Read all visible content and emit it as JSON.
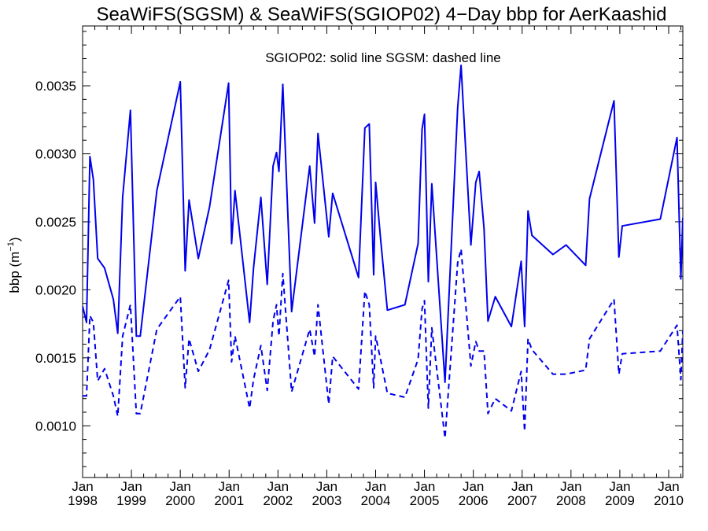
{
  "chart_data": {
    "type": "line",
    "title": "SeaWiFS(SGSM) & SeaWiFS(SGIOP02) 4−Day bbp for AerKaashid",
    "annotation": "SGIOP02: solid line   SGSM: dashed line",
    "ylabel_main": "bbp (m",
    "ylabel_sup": "−1",
    "ylabel_close": ")",
    "ylim": [
      0.00062,
      0.00394
    ],
    "xlim": [
      1998.0,
      2010.29
    ],
    "y_ticks": [
      "0.0010",
      "0.0015",
      "0.0020",
      "0.0025",
      "0.0030",
      "0.0035"
    ],
    "y_tick_values": [
      0.001,
      0.0015,
      0.002,
      0.0025,
      0.003,
      0.0035
    ],
    "x_tick_month": "Jan",
    "x_ticks": [
      "1998",
      "1999",
      "2000",
      "2001",
      "2002",
      "2003",
      "2004",
      "2005",
      "2006",
      "2007",
      "2008",
      "2009",
      "2010"
    ],
    "grid": false,
    "color": "#0000ee",
    "series": [
      {
        "name": "SGIOP02",
        "style": "solid",
        "x": [
          1998.0,
          1998.08,
          1998.15,
          1998.22,
          1998.31,
          1998.45,
          1998.63,
          1998.72,
          1998.82,
          1998.98,
          1999.1,
          1999.18,
          1999.52,
          2000.0,
          2000.1,
          2000.18,
          2000.37,
          2000.6,
          2000.99,
          2001.05,
          2001.12,
          2001.42,
          2001.5,
          2001.65,
          2001.78,
          2001.9,
          2001.97,
          2002.02,
          2002.1,
          2002.28,
          2002.65,
          2002.75,
          2002.82,
          2003.04,
          2003.12,
          2003.65,
          2003.78,
          2003.87,
          2003.96,
          2004.0,
          2004.1,
          2004.24,
          2004.6,
          2004.87,
          2004.95,
          2005.0,
          2005.08,
          2005.15,
          2005.42,
          2005.68,
          2005.75,
          2005.95,
          2006.05,
          2006.12,
          2006.22,
          2006.3,
          2006.45,
          2006.78,
          2006.98,
          2007.05,
          2007.12,
          2007.2,
          2007.63,
          2007.9,
          2008.3,
          2008.38,
          2008.88,
          2008.98,
          2009.05,
          2009.83,
          2010.17,
          2010.25,
          2010.29
        ],
        "values": [
          0.00188,
          0.00176,
          0.00298,
          0.00281,
          0.00223,
          0.00216,
          0.00193,
          0.00168,
          0.00268,
          0.00332,
          0.00166,
          0.00166,
          0.00273,
          0.00353,
          0.00214,
          0.00266,
          0.00223,
          0.00261,
          0.00352,
          0.00234,
          0.00273,
          0.00176,
          0.00216,
          0.00268,
          0.00204,
          0.00291,
          0.00301,
          0.00287,
          0.00351,
          0.00184,
          0.00291,
          0.00249,
          0.00315,
          0.00239,
          0.00271,
          0.00209,
          0.00319,
          0.00322,
          0.00211,
          0.00279,
          0.00238,
          0.00185,
          0.00189,
          0.00234,
          0.00318,
          0.00329,
          0.00206,
          0.00278,
          0.00132,
          0.00334,
          0.00365,
          0.00233,
          0.00279,
          0.00287,
          0.00245,
          0.00177,
          0.00195,
          0.00173,
          0.00221,
          0.00173,
          0.00258,
          0.0024,
          0.00226,
          0.00233,
          0.00218,
          0.00267,
          0.00339,
          0.00224,
          0.00247,
          0.00252,
          0.00312,
          0.00208,
          0.00253
        ]
      },
      {
        "name": "SGSM",
        "style": "dashed",
        "x": [
          1998.0,
          1998.08,
          1998.15,
          1998.22,
          1998.31,
          1998.45,
          1998.63,
          1998.72,
          1998.82,
          1998.98,
          1999.1,
          1999.18,
          1999.52,
          2000.0,
          2000.1,
          2000.18,
          2000.37,
          2000.6,
          2000.99,
          2001.05,
          2001.12,
          2001.42,
          2001.5,
          2001.65,
          2001.78,
          2001.9,
          2001.97,
          2002.02,
          2002.1,
          2002.28,
          2002.65,
          2002.75,
          2002.82,
          2003.04,
          2003.12,
          2003.65,
          2003.78,
          2003.87,
          2003.96,
          2004.0,
          2004.1,
          2004.24,
          2004.6,
          2004.87,
          2004.95,
          2005.0,
          2005.08,
          2005.15,
          2005.42,
          2005.68,
          2005.75,
          2005.95,
          2006.05,
          2006.12,
          2006.22,
          2006.3,
          2006.45,
          2006.78,
          2006.98,
          2007.05,
          2007.12,
          2007.2,
          2007.63,
          2007.9,
          2008.3,
          2008.38,
          2008.88,
          2008.98,
          2009.05,
          2009.83,
          2010.17,
          2010.25,
          2010.29
        ],
        "values": [
          0.00122,
          0.00122,
          0.00181,
          0.00176,
          0.00133,
          0.00142,
          0.00122,
          0.00107,
          0.00166,
          0.00189,
          0.00109,
          0.00109,
          0.00171,
          0.00195,
          0.00128,
          0.00164,
          0.0014,
          0.00156,
          0.00207,
          0.00147,
          0.00166,
          0.00113,
          0.00134,
          0.00159,
          0.00126,
          0.00177,
          0.00189,
          0.00166,
          0.00212,
          0.00125,
          0.00171,
          0.00151,
          0.00189,
          0.00116,
          0.00151,
          0.00127,
          0.00199,
          0.00189,
          0.00128,
          0.00166,
          0.00149,
          0.00124,
          0.00121,
          0.00149,
          0.00186,
          0.00192,
          0.00113,
          0.00172,
          0.00091,
          0.0022,
          0.0023,
          0.00144,
          0.00162,
          0.00155,
          0.00155,
          0.00109,
          0.0012,
          0.00111,
          0.0014,
          0.00096,
          0.00164,
          0.00156,
          0.00138,
          0.00138,
          0.00141,
          0.00164,
          0.00193,
          0.00138,
          0.00153,
          0.00155,
          0.00174,
          0.00134,
          0.0017
        ]
      }
    ]
  }
}
